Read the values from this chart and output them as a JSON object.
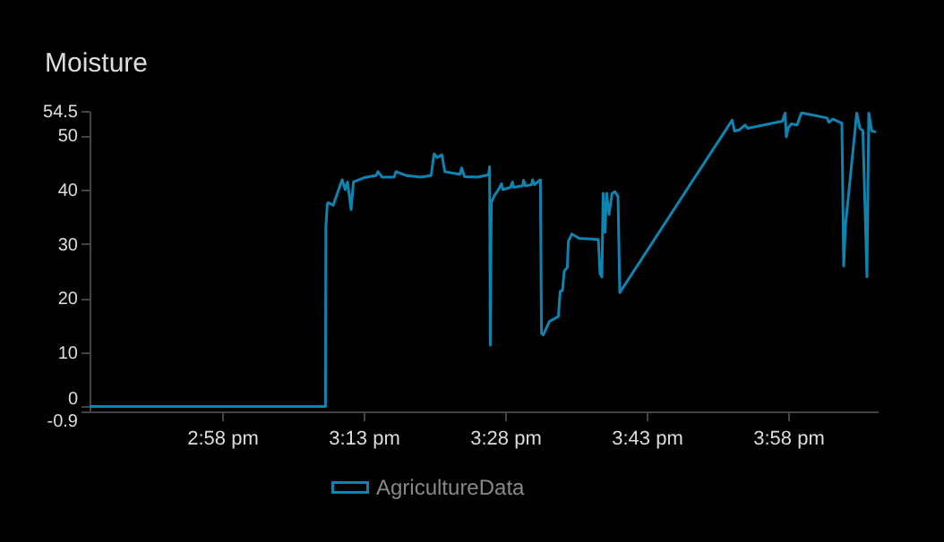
{
  "chart_data": {
    "type": "line",
    "title": "Moisture",
    "legend": "bottom",
    "xlim": [
      14.7325,
      16.1249
    ],
    "xticks": [
      {
        "value": 14.9667,
        "label": "2:58 pm"
      },
      {
        "value": 15.2167,
        "label": "3:13 pm"
      },
      {
        "value": 15.4667,
        "label": "3:28 pm"
      },
      {
        "value": 15.7167,
        "label": "3:43 pm"
      },
      {
        "value": 15.9667,
        "label": "3:58 pm"
      }
    ],
    "ylim": [
      -0.9,
      54.5
    ],
    "yticks": [
      -0.9,
      0,
      10,
      20,
      30,
      40,
      50,
      54.5
    ],
    "x": [
      14.7325,
      15.1493,
      15.15,
      15.1525,
      15.1544,
      15.1629,
      15.1702,
      15.1787,
      15.1841,
      15.1882,
      15.1946,
      15.1987,
      15.2177,
      15.2389,
      15.242,
      15.2493,
      15.2705,
      15.2737,
      15.2917,
      15.318,
      15.336,
      15.3411,
      15.3465,
      15.355,
      15.3601,
      15.3866,
      15.3898,
      15.3949,
      15.4183,
      15.4373,
      15.4392,
      15.4404,
      15.4423,
      15.4477,
      15.455,
      15.4604,
      15.4626,
      15.4762,
      15.4794,
      15.4816,
      15.4974,
      15.4993,
      15.5025,
      15.5132,
      15.5151,
      15.5183,
      15.529,
      15.5309,
      15.5341,
      15.5449,
      15.5607,
      15.5639,
      15.568,
      15.5711,
      15.5765,
      15.5784,
      15.5847,
      15.5974,
      15.6313,
      15.6344,
      15.6376,
      15.6398,
      15.643,
      15.6461,
      15.6502,
      15.6556,
      15.6607,
      15.6661,
      15.6692,
      15.8677,
      15.8718,
      15.8803,
      15.8908,
      15.8949,
      15.9563,
      15.9613,
      15.9635,
      15.9667,
      15.9721,
      15.9825,
      15.9898,
      15.993,
      16.0354,
      16.0385,
      16.0458,
      16.0616,
      16.0648,
      16.068,
      16.0879,
      16.0933,
      16.0987,
      16.1059,
      16.1091,
      16.1145,
      16.1218
    ],
    "series": [
      {
        "name": "AgricultureData",
        "color": "#0e84b0",
        "values": [
          0,
          0,
          33.2,
          37.3,
          37.6,
          37.1,
          39.3,
          41.8,
          40.0,
          41.4,
          36.3,
          41.4,
          42.2,
          42.6,
          43.3,
          42.3,
          42.3,
          43.3,
          42.6,
          42.3,
          42.6,
          46.6,
          45.9,
          46.4,
          43.3,
          42.8,
          44.0,
          42.4,
          42.3,
          42.7,
          44.2,
          11.3,
          37.6,
          38.9,
          40.0,
          41.1,
          40.0,
          40.4,
          41.4,
          40.4,
          40.7,
          41.7,
          40.7,
          40.9,
          41.8,
          40.9,
          41.8,
          13.5,
          13.2,
          15.7,
          16.6,
          21.2,
          21.4,
          25.0,
          25.6,
          30.5,
          31.8,
          31.0,
          30.8,
          24.5,
          23.9,
          39.3,
          32.1,
          39.3,
          35.4,
          39.3,
          39.6,
          38.7,
          21.0,
          52.8,
          50.8,
          51.0,
          51.9,
          51.3,
          52.6,
          54.1,
          49.7,
          51.3,
          52.1,
          51.9,
          54.1,
          54.1,
          53.2,
          52.4,
          53.0,
          52.2,
          25.9,
          33.5,
          54.1,
          51.3,
          50.8,
          23.9,
          54.1,
          50.8,
          50.6
        ]
      }
    ]
  }
}
